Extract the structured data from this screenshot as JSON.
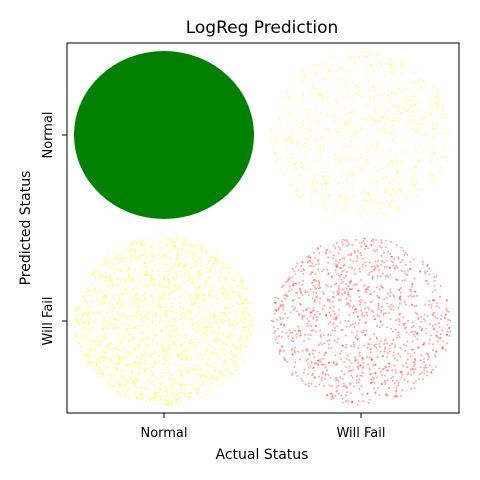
{
  "chart_data": {
    "type": "scatter",
    "title": "LogReg Prediction",
    "xlabel": "Actual Status",
    "ylabel": "Predicted Status",
    "x_categories": [
      "Normal",
      "Will Fail"
    ],
    "y_categories": [
      "Normal",
      "Will Fail"
    ],
    "grid": false,
    "legend": "none",
    "cells": [
      {
        "actual": "Normal",
        "predicted": "Normal",
        "relative_count": 1.0,
        "color": "#008000"
      },
      {
        "actual": "Will Fail",
        "predicted": "Normal",
        "relative_count": 0.12,
        "color": "#ffff00"
      },
      {
        "actual": "Normal",
        "predicted": "Will Fail",
        "relative_count": 0.35,
        "color": "#ffff00"
      },
      {
        "actual": "Will Fail",
        "predicted": "Will Fail",
        "relative_count": 0.22,
        "color": "#ff0000"
      }
    ]
  }
}
